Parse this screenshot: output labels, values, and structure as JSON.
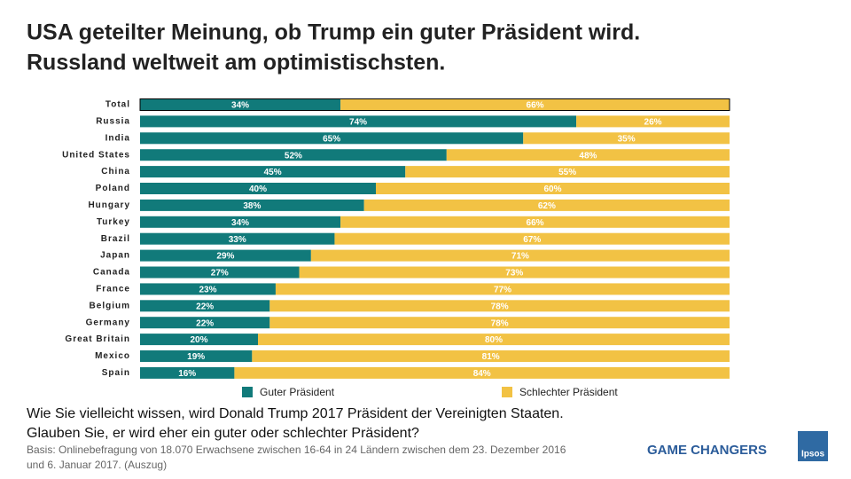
{
  "chart_data": {
    "type": "stacked-bar-horizontal",
    "title": [
      "USA geteilter Meinung, ob Trump ein guter Präsident wird.",
      "Russland weltweit am optimistischsten."
    ],
    "categories": [
      "Total",
      "Russia",
      "India",
      "United States",
      "China",
      "Poland",
      "Hungary",
      "Turkey",
      "Brazil",
      "Japan",
      "Canada",
      "France",
      "Belgium",
      "Germany",
      "Great Britain",
      "Mexico",
      "Spain"
    ],
    "series": [
      {
        "name": "Guter Präsident",
        "color": "#117a7a",
        "values": [
          34,
          74,
          65,
          52,
          45,
          40,
          38,
          34,
          33,
          29,
          27,
          23,
          22,
          22,
          20,
          19,
          16
        ],
        "value_labels": [
          "34%",
          "74%",
          "65%",
          "52%",
          "45%",
          "40%",
          "38%",
          "34%",
          "33%",
          "29%",
          "27%",
          "23%",
          "22%",
          "22%",
          "20%",
          "19%",
          "16%"
        ]
      },
      {
        "name": "Schlechter Präsident",
        "color": "#f2c244",
        "values": [
          66,
          26,
          35,
          48,
          55,
          60,
          62,
          66,
          67,
          71,
          73,
          77,
          78,
          78,
          80,
          81,
          84
        ],
        "value_labels": [
          "66%",
          "26%",
          "35%",
          "48%",
          "55%",
          "60%",
          "62%",
          "66%",
          "67%",
          "71%",
          "73%",
          "77%",
          "78%",
          "78%",
          "80%",
          "81%",
          "84%"
        ]
      }
    ],
    "question": [
      "Wie Sie vielleicht wissen, wird Donald Trump 2017 Präsident der Vereinigten Staaten.",
      "Glauben Sie, er wird eher ein guter oder schlechter Präsident?"
    ],
    "note": [
      "Basis: Onlinebefragung von 18.070  Erwachsene zwischen 16-64 in 24 Ländern zwischen dem 23. Dezember 2016",
      "und 6. Januar 2017.  (Auszug)"
    ],
    "brand": "GAME CHANGERS",
    "logo": "Ipsos"
  }
}
